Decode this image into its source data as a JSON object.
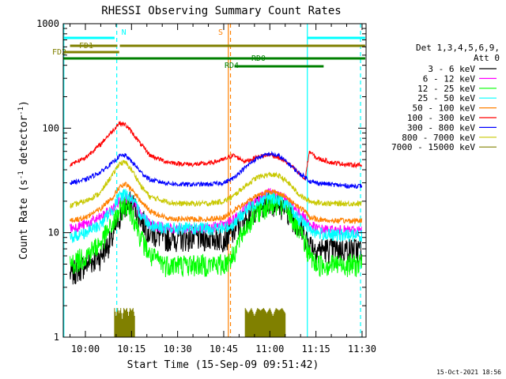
{
  "chart_data": {
    "type": "line",
    "title": "RHESSI Observing Summary Count Rates",
    "xlabel": "Start Time (15-Sep-09 09:51:42)",
    "ylabel_parts": [
      "Count Rate (s",
      "-1",
      " detector",
      "-1",
      ")"
    ],
    "yscale": "log",
    "ylim": [
      1,
      1000
    ],
    "xlim_minutes": [
      -7.2,
      91.3
    ],
    "x_ticks": [
      {
        "label": "10:00",
        "t": 0
      },
      {
        "label": "10:15",
        "t": 15
      },
      {
        "label": "10:30",
        "t": 30
      },
      {
        "label": "10:45",
        "t": 45
      },
      {
        "label": "11:00",
        "t": 60
      },
      {
        "label": "11:15",
        "t": 75
      },
      {
        "label": "11:30",
        "t": 90
      }
    ],
    "y_ticks": [
      {
        "label": "1",
        "v": 1
      },
      {
        "label": "10",
        "v": 10
      },
      {
        "label": "100",
        "v": 100
      },
      {
        "label": "1000",
        "v": 1000
      }
    ],
    "legend_header": [
      "Det 1,3,4,5,6,9,",
      "Att 0"
    ],
    "series": [
      {
        "name": "3 - 6 keV",
        "color": "#000000",
        "t": [
          -5,
          0,
          5,
          9,
          11,
          13,
          15,
          18,
          21,
          26,
          30,
          35,
          40,
          45,
          48,
          52,
          56,
          60,
          63,
          66,
          69,
          71.5,
          73,
          75,
          80,
          85,
          90
        ],
        "values": [
          4,
          5,
          6,
          9,
          14,
          18,
          20,
          14,
          10,
          9,
          9,
          9,
          9,
          9,
          10,
          14,
          18,
          20,
          19,
          16,
          12,
          9,
          8,
          7,
          7,
          7,
          7
        ]
      },
      {
        "name": "6 - 12 keV",
        "color": "#ff00ff",
        "t": [
          -5,
          0,
          5,
          9,
          11,
          13,
          15,
          18,
          21,
          26,
          30,
          35,
          40,
          45,
          48,
          52,
          56,
          60,
          63,
          66,
          69,
          71.5,
          73,
          75,
          80,
          85,
          90
        ],
        "values": [
          11,
          12,
          14,
          17,
          20,
          22,
          20,
          15,
          12,
          11,
          11,
          11,
          11,
          12,
          13,
          17,
          21,
          24,
          23,
          20,
          16,
          14,
          12,
          11,
          10.5,
          10.5,
          10.5
        ]
      },
      {
        "name": "12 - 25 keV",
        "color": "#00ff00",
        "t": [
          -5,
          0,
          5,
          9,
          11,
          13,
          15,
          18,
          21,
          26,
          30,
          35,
          40,
          45,
          48,
          52,
          56,
          60,
          63,
          66,
          69,
          71.5,
          73,
          75,
          80,
          85,
          90
        ],
        "values": [
          5,
          6,
          8,
          12,
          16,
          19,
          16,
          9,
          6,
          5,
          5,
          5,
          5,
          5,
          6,
          11,
          16,
          19,
          19,
          16,
          11,
          8,
          6,
          5,
          5,
          5,
          5
        ]
      },
      {
        "name": "25 - 50 keV",
        "color": "#00ffff",
        "t": [
          -5,
          0,
          5,
          9,
          11,
          13,
          15,
          18,
          21,
          26,
          30,
          35,
          40,
          45,
          48,
          52,
          56,
          60,
          63,
          66,
          69,
          71.5,
          73,
          75,
          80,
          85,
          90
        ],
        "values": [
          9,
          10,
          12,
          17,
          22,
          24,
          21,
          15,
          12,
          11,
          11,
          11,
          11,
          11,
          12,
          16,
          20,
          22,
          21,
          18,
          14,
          12,
          11,
          10,
          9.5,
          9.5,
          9.5
        ]
      },
      {
        "name": "50 - 100 keV",
        "color": "#ff8000",
        "t": [
          -5,
          0,
          5,
          9,
          11,
          13,
          15,
          18,
          21,
          26,
          30,
          35,
          40,
          45,
          48,
          52,
          56,
          60,
          63,
          66,
          69,
          71.5,
          73,
          75,
          80,
          85,
          90
        ],
        "values": [
          13,
          14,
          17,
          22,
          27,
          29,
          26,
          20,
          16,
          14,
          13.5,
          13.5,
          13.5,
          14,
          16,
          19,
          23,
          25,
          24,
          21,
          18,
          16,
          14,
          13.5,
          13,
          13,
          13
        ]
      },
      {
        "name": "100 - 300 keV",
        "color": "#ff0000",
        "t": [
          -5,
          0,
          5,
          9,
          11,
          13,
          15,
          18,
          21,
          26,
          30,
          35,
          40,
          45,
          48,
          52,
          56,
          60,
          63,
          66,
          69,
          71.5,
          73,
          75,
          80,
          85,
          90
        ],
        "values": [
          45,
          52,
          70,
          95,
          112,
          108,
          92,
          70,
          55,
          48,
          46,
          45,
          46,
          50,
          55,
          48,
          53,
          56,
          52,
          46,
          38,
          32,
          60,
          52,
          47,
          45,
          44
        ]
      },
      {
        "name": "300 - 800 keV",
        "color": "#0000ff",
        "t": [
          -5,
          0,
          5,
          9,
          11,
          13,
          15,
          18,
          21,
          26,
          30,
          35,
          40,
          45,
          48,
          52,
          56,
          60,
          63,
          66,
          69,
          71.5,
          73,
          75,
          80,
          85,
          90
        ],
        "values": [
          30,
          32,
          38,
          47,
          54,
          55,
          48,
          38,
          32,
          30,
          29,
          29,
          29,
          30,
          33,
          42,
          52,
          57,
          54,
          46,
          38,
          34,
          31,
          30,
          29,
          28,
          28
        ]
      },
      {
        "name": "800 - 7000 keV",
        "color": "#c8c800",
        "t": [
          -5,
          0,
          5,
          9,
          11,
          13,
          15,
          18,
          21,
          26,
          30,
          35,
          40,
          45,
          48,
          52,
          56,
          60,
          63,
          66,
          69,
          71.5,
          73,
          75,
          80,
          85,
          90
        ],
        "values": [
          18,
          20,
          24,
          36,
          46,
          47,
          40,
          28,
          22,
          20,
          19,
          19,
          19,
          20,
          22,
          28,
          34,
          36,
          35,
          30,
          24,
          21,
          20,
          19.5,
          19,
          19,
          19
        ]
      },
      {
        "name": "7000 - 15000 keV",
        "color": "#808000",
        "t": [
          9.5,
          10,
          10.5,
          11,
          11.5,
          12,
          12.5,
          13,
          13.5,
          14,
          14.5,
          15,
          15.5,
          16,
          52,
          53,
          54,
          55,
          56,
          57,
          58,
          59,
          60,
          61,
          62,
          63,
          64,
          65
        ],
        "values": [
          1.9,
          1.6,
          1.9,
          1.7,
          1.9,
          1.5,
          1.9,
          1.8,
          1.9,
          1.6,
          1.9,
          1.8,
          1.9,
          1.6,
          1.9,
          1.7,
          1.9,
          1.6,
          1.9,
          1.8,
          1.9,
          1.7,
          1.9,
          1.6,
          1.9,
          1.8,
          1.9,
          1.7
        ]
      }
    ],
    "flag_bars": [
      {
        "label": "",
        "color": "#00ffff",
        "segments": [
          [
            -7.2,
            9.5
          ],
          [
            72.3,
            91
          ]
        ]
      },
      {
        "label": "FD1",
        "color": "#808000",
        "segments": [
          [
            -5,
            10.4
          ],
          [
            11.2,
            91
          ]
        ]
      },
      {
        "label": "FD2",
        "color": "#808000",
        "segments": [
          [
            -7.2,
            11
          ]
        ]
      },
      {
        "label": "",
        "color": "#008000",
        "segments": [
          [
            -7.2,
            91
          ]
        ]
      },
      {
        "label": "RD0",
        "color": "#008000",
        "segments": [
          [
            -7.2,
            64
          ],
          [
            77,
            91
          ]
        ]
      },
      {
        "label": "RD4",
        "color": "#008000",
        "segments": [
          [
            48.5,
            77.5
          ]
        ]
      }
    ],
    "event_markers": [
      {
        "label": "N",
        "color": "#00ffff",
        "t": 10.2
      },
      {
        "label": "S",
        "color": "#ff8000",
        "t": 46.8
      }
    ],
    "vertical_lines": [
      {
        "color": "#00ffff",
        "style": "dashed",
        "t": 10.2
      },
      {
        "color": "#00ffff",
        "style": "solid",
        "t": 72.2
      },
      {
        "color": "#00ffff",
        "style": "dashed",
        "t": 89.5
      },
      {
        "color": "#00ffff",
        "style": "solid",
        "t": -7.0
      },
      {
        "color": "#ff8000",
        "style": "solid",
        "t": 46.5
      },
      {
        "color": "#ff8000",
        "style": "dashed",
        "t": 47.2
      }
    ],
    "legend_placement": "right",
    "grid": false
  },
  "footer_timestamp": "15-Oct-2021 18:56"
}
